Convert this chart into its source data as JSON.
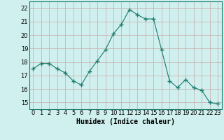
{
  "x": [
    0,
    1,
    2,
    3,
    4,
    5,
    6,
    7,
    8,
    9,
    10,
    11,
    12,
    13,
    14,
    15,
    16,
    17,
    18,
    19,
    20,
    21,
    22,
    23
  ],
  "y": [
    17.5,
    17.9,
    17.9,
    17.5,
    17.2,
    16.6,
    16.3,
    17.3,
    18.1,
    18.9,
    20.1,
    20.8,
    21.9,
    21.5,
    21.2,
    21.2,
    18.9,
    16.6,
    16.1,
    16.7,
    16.1,
    15.9,
    15.0,
    14.9
  ],
  "line_color": "#1a7a6e",
  "marker": "+",
  "marker_size": 4,
  "bg_color": "#cff0ee",
  "grid_color_major": "#c8a8a8",
  "grid_color_minor": "#dccece",
  "xlabel": "Humidex (Indice chaleur)",
  "xlabel_fontsize": 7,
  "tick_fontsize": 6,
  "ylim": [
    14.5,
    22.5
  ],
  "xlim": [
    -0.5,
    23.5
  ],
  "yticks": [
    15,
    16,
    17,
    18,
    19,
    20,
    21,
    22
  ],
  "xticks": [
    0,
    1,
    2,
    3,
    4,
    5,
    6,
    7,
    8,
    9,
    10,
    11,
    12,
    13,
    14,
    15,
    16,
    17,
    18,
    19,
    20,
    21,
    22,
    23
  ]
}
